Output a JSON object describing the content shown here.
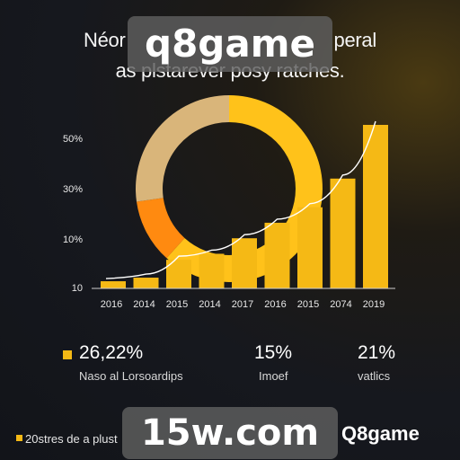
{
  "header": {
    "title_line1": "Néor",
    "title_line1_end": "peral",
    "title_line2": "as plstarever posy ratches."
  },
  "watermarks": {
    "top": "q8game",
    "bottom": "15w.com"
  },
  "chart_data": {
    "type": "bar",
    "categories": [
      "2016",
      "2014",
      "2015",
      "2014",
      "2017",
      "2016",
      "2015",
      "2074",
      "2019"
    ],
    "values": [
      6,
      9,
      24,
      29,
      42,
      55,
      68,
      92,
      137
    ],
    "y_ticks": [
      "10",
      "10%",
      "30%",
      "50%"
    ],
    "xlabel": "",
    "ylabel": "",
    "overlay": "donut + rising trend line",
    "colors": {
      "bar": "#f5b915",
      "donut_tan": "#d9b57a",
      "donut_orange": "#ff8a10",
      "donut_yellow": "#ffc21a",
      "trend": "#ffffff"
    }
  },
  "stats": [
    {
      "value": "26,22%",
      "label": "Naso al Lorsoardips"
    },
    {
      "value": "15%",
      "label": "Imoef"
    },
    {
      "value": "21%",
      "label": "vatlics"
    }
  ],
  "footer": {
    "text": "20stres de a plust",
    "brand": "Q8game"
  }
}
